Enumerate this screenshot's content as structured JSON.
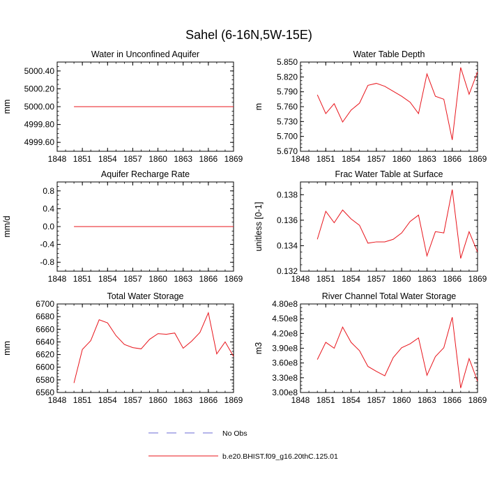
{
  "figure": {
    "title": "Sahel (6-16N,5W-15E)",
    "line_color": "#e8141b",
    "obs_color": "#6b6bd6",
    "legend": [
      {
        "label": "No Obs",
        "style": "dashed"
      },
      {
        "label": "b.e20.BHIST.f09_g16.20thC.125.01",
        "style": "solid"
      }
    ]
  },
  "chart_data": [
    {
      "type": "line",
      "title": "Water in Unconfined Aquifer",
      "ylabel": "mm",
      "xlabel": "",
      "xlim": [
        1848,
        1869
      ],
      "ylim": [
        4999.5,
        5000.5
      ],
      "xticks": [
        "1848",
        "1851",
        "1854",
        "1857",
        "1860",
        "1863",
        "1866",
        "1869"
      ],
      "yticks": [
        "4999.60",
        "4999.80",
        "5000.00",
        "5000.20",
        "5000.40"
      ],
      "x": [
        1850,
        1851,
        1852,
        1853,
        1854,
        1855,
        1856,
        1857,
        1858,
        1859,
        1860,
        1861,
        1862,
        1863,
        1864,
        1865,
        1866,
        1867,
        1868,
        1869
      ],
      "series": [
        {
          "values": [
            5000,
            5000,
            5000,
            5000,
            5000,
            5000,
            5000,
            5000,
            5000,
            5000,
            5000,
            5000,
            5000,
            5000,
            5000,
            5000,
            5000,
            5000,
            5000,
            5000
          ]
        }
      ]
    },
    {
      "type": "line",
      "title": "Water Table Depth",
      "ylabel": "m",
      "xlabel": "",
      "xlim": [
        1848,
        1869
      ],
      "ylim": [
        5.67,
        5.85
      ],
      "xticks": [
        "1848",
        "1851",
        "1854",
        "1857",
        "1860",
        "1863",
        "1866",
        "1869"
      ],
      "yticks": [
        "5.670",
        "5.700",
        "5.730",
        "5.760",
        "5.790",
        "5.820",
        "5.850"
      ],
      "x": [
        1850,
        1851,
        1852,
        1853,
        1854,
        1855,
        1856,
        1857,
        1858,
        1859,
        1860,
        1861,
        1862,
        1863,
        1864,
        1865,
        1866,
        1867,
        1868,
        1869
      ],
      "series": [
        {
          "values": [
            5.784,
            5.746,
            5.766,
            5.729,
            5.753,
            5.767,
            5.803,
            5.807,
            5.801,
            5.791,
            5.781,
            5.769,
            5.746,
            5.826,
            5.781,
            5.775,
            5.693,
            5.839,
            5.785,
            5.83
          ]
        }
      ]
    },
    {
      "type": "line",
      "title": "Aquifer Recharge Rate",
      "ylabel": "mm/d",
      "xlabel": "",
      "xlim": [
        1848,
        1869
      ],
      "ylim": [
        -1.0,
        1.0
      ],
      "xticks": [
        "1848",
        "1851",
        "1854",
        "1857",
        "1860",
        "1863",
        "1866",
        "1869"
      ],
      "yticks": [
        "-0.8",
        "-0.4",
        "0.0",
        "0.4",
        "0.8"
      ],
      "x": [
        1850,
        1851,
        1852,
        1853,
        1854,
        1855,
        1856,
        1857,
        1858,
        1859,
        1860,
        1861,
        1862,
        1863,
        1864,
        1865,
        1866,
        1867,
        1868,
        1869
      ],
      "series": [
        {
          "values": [
            0,
            0,
            0,
            0,
            0,
            0,
            0,
            0,
            0,
            0,
            0,
            0,
            0,
            0,
            0,
            0,
            0,
            0,
            0,
            0
          ]
        }
      ]
    },
    {
      "type": "line",
      "title": "Frac Water Table at Surface",
      "ylabel": "unitless [0-1]",
      "xlabel": "",
      "xlim": [
        1848,
        1869
      ],
      "ylim": [
        0.132,
        0.139
      ],
      "xticks": [
        "1848",
        "1851",
        "1854",
        "1857",
        "1860",
        "1863",
        "1866",
        "1869"
      ],
      "yticks": [
        "0.132",
        "0.134",
        "0.136",
        "0.138"
      ],
      "x": [
        1850,
        1851,
        1852,
        1853,
        1854,
        1855,
        1856,
        1857,
        1858,
        1859,
        1860,
        1861,
        1862,
        1863,
        1864,
        1865,
        1866,
        1867,
        1868,
        1869
      ],
      "series": [
        {
          "values": [
            0.1345,
            0.1367,
            0.1358,
            0.1368,
            0.1361,
            0.1356,
            0.1342,
            0.1343,
            0.1343,
            0.1345,
            0.135,
            0.1359,
            0.1364,
            0.1332,
            0.1351,
            0.135,
            0.1384,
            0.133,
            0.1351,
            0.1335
          ]
        }
      ]
    },
    {
      "type": "line",
      "title": "Total Water Storage",
      "ylabel": "mm",
      "xlabel": "",
      "xlim": [
        1848,
        1869
      ],
      "ylim": [
        6560,
        6700
      ],
      "xticks": [
        "1848",
        "1851",
        "1854",
        "1857",
        "1860",
        "1863",
        "1866",
        "1869"
      ],
      "yticks": [
        "6560",
        "6580",
        "6600",
        "6620",
        "6640",
        "6660",
        "6680",
        "6700"
      ],
      "x": [
        1850,
        1851,
        1852,
        1853,
        1854,
        1855,
        1856,
        1857,
        1858,
        1859,
        1860,
        1861,
        1862,
        1863,
        1864,
        1865,
        1866,
        1867,
        1868,
        1869
      ],
      "series": [
        {
          "values": [
            6575,
            6628,
            6642,
            6675,
            6670,
            6650,
            6636,
            6631,
            6629,
            6644,
            6653,
            6652,
            6654,
            6630,
            6641,
            6655,
            6686,
            6621,
            6640,
            6617
          ]
        }
      ]
    },
    {
      "type": "line",
      "title": "River Channel Total Water Storage",
      "ylabel": "m3",
      "xlabel": "",
      "xlim": [
        1848,
        1869
      ],
      "ylim": [
        300000000,
        480000000
      ],
      "xticks": [
        "1848",
        "1851",
        "1854",
        "1857",
        "1860",
        "1863",
        "1866",
        "1869"
      ],
      "yticks": [
        "3.00e8",
        "3.30e8",
        "3.60e8",
        "3.90e8",
        "4.20e8",
        "4.50e8",
        "4.80e8"
      ],
      "x": [
        1850,
        1851,
        1852,
        1853,
        1854,
        1855,
        1856,
        1857,
        1858,
        1859,
        1860,
        1861,
        1862,
        1863,
        1864,
        1865,
        1866,
        1867,
        1868,
        1869
      ],
      "series": [
        {
          "values": [
            367000000,
            402000000,
            390000000,
            433000000,
            402000000,
            385000000,
            353000000,
            343000000,
            334000000,
            371000000,
            391000000,
            399000000,
            411000000,
            335000000,
            373000000,
            391000000,
            453000000,
            309000000,
            369000000,
            323000000
          ]
        }
      ]
    }
  ]
}
